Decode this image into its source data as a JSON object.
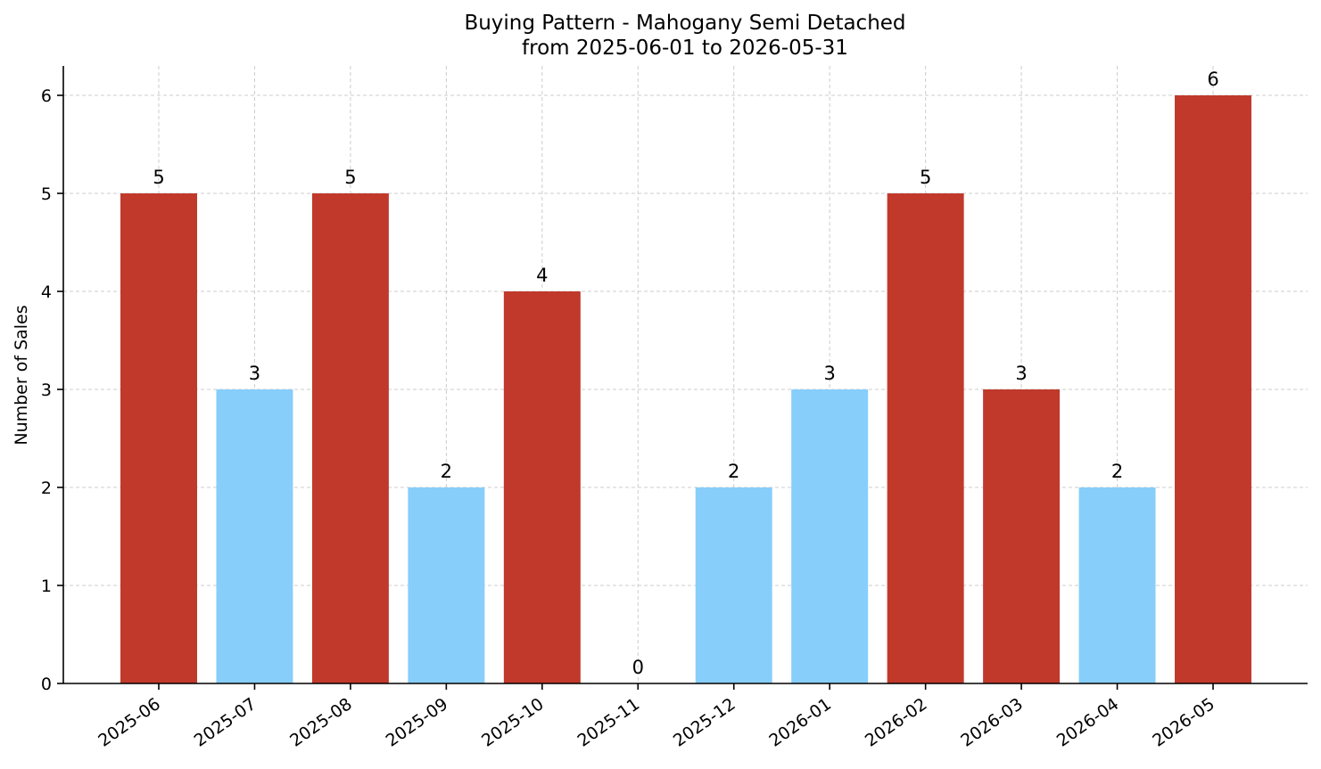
{
  "chart_data": {
    "type": "bar",
    "title": "Buying Pattern - Mahogany Semi Detached",
    "subtitle": "from 2025-06-01 to 2026-05-31",
    "xlabel": "",
    "ylabel": "Number of Sales",
    "categories": [
      "2025-06",
      "2025-07",
      "2025-08",
      "2025-09",
      "2025-10",
      "2025-11",
      "2025-12",
      "2026-01",
      "2026-02",
      "2026-03",
      "2026-04",
      "2026-05"
    ],
    "values": [
      5,
      3,
      5,
      2,
      4,
      0,
      2,
      3,
      5,
      3,
      2,
      6
    ],
    "bar_colors": [
      "#c0392b",
      "#87cefa",
      "#c0392b",
      "#87cefa",
      "#c0392b",
      "#87cefa",
      "#87cefa",
      "#87cefa",
      "#c0392b",
      "#c0392b",
      "#87cefa",
      "#c0392b"
    ],
    "ylim": [
      0,
      6.3
    ],
    "yticks": [
      0,
      1,
      2,
      3,
      4,
      5,
      6
    ],
    "grid": true,
    "data_labels": true
  }
}
